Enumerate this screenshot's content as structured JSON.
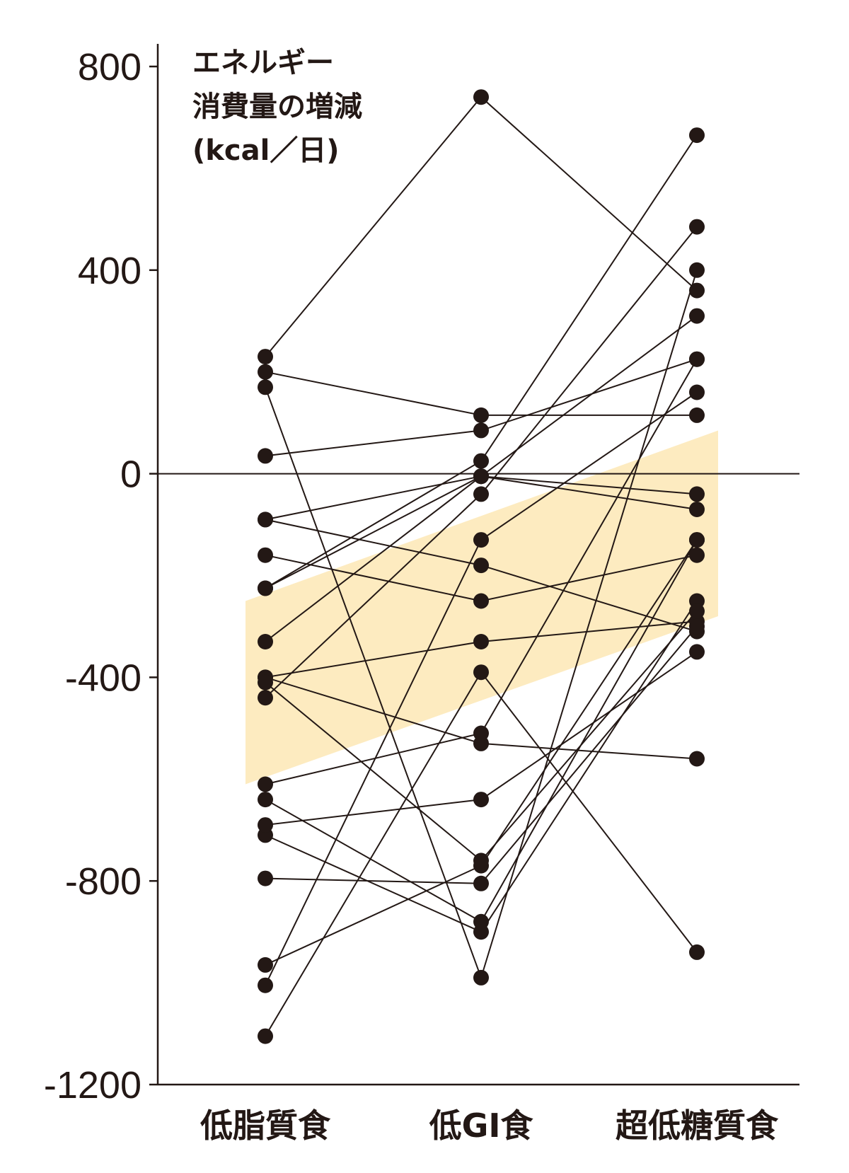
{
  "chart_data": {
    "type": "line",
    "title": "",
    "ylabel_lines": [
      "エネルギー",
      "消費量の増減",
      "(kcal／日)"
    ],
    "xlabel": "",
    "categories": [
      "低脂質食",
      "低GI食",
      "超低糖質食"
    ],
    "ylim": [
      -1200,
      850
    ],
    "yticks": [
      800,
      400,
      0,
      -400,
      -800,
      -1200
    ],
    "ytick_labels": [
      "800",
      "400",
      "0",
      "-400",
      "-800",
      "-1200"
    ],
    "zero_line": true,
    "grid": false,
    "legend": "none",
    "band": {
      "lower": [
        -610,
        -460,
        -280
      ],
      "upper": [
        -250,
        -100,
        85
      ]
    },
    "series": [
      {
        "values": [
          230,
          740,
          360
        ]
      },
      {
        "values": [
          200,
          115,
          115
        ]
      },
      {
        "values": [
          170,
          -990,
          400
        ]
      },
      {
        "values": [
          35,
          85,
          225
        ]
      },
      {
        "values": [
          -90,
          -5,
          -40
        ]
      },
      {
        "values": [
          -90,
          -180,
          -310
        ]
      },
      {
        "values": [
          -160,
          -250,
          -160
        ]
      },
      {
        "values": [
          -225,
          25,
          665
        ]
      },
      {
        "values": [
          -225,
          -5,
          310
        ]
      },
      {
        "values": [
          -330,
          -5,
          -70
        ]
      },
      {
        "values": [
          -400,
          -330,
          -290
        ]
      },
      {
        "values": [
          -400,
          -530,
          -560
        ]
      },
      {
        "values": [
          -440,
          -40,
          485
        ]
      },
      {
        "values": [
          -610,
          -510,
          225
        ]
      },
      {
        "values": [
          -640,
          -880,
          -130
        ]
      },
      {
        "values": [
          -710,
          -900,
          -250
        ]
      },
      {
        "values": [
          -795,
          -805,
          -300
        ]
      },
      {
        "values": [
          -965,
          -770,
          -130
        ]
      },
      {
        "values": [
          -1005,
          -130,
          160
        ]
      },
      {
        "values": [
          -1105,
          -390,
          -940
        ]
      },
      {
        "values": [
          -410,
          -760,
          -270
        ]
      },
      {
        "values": [
          -690,
          -640,
          -350
        ]
      }
    ]
  },
  "colors": {
    "band": "#fdebc0",
    "line": "#231815",
    "dot": "#231815",
    "axis": "#231815",
    "background": "#ffffff"
  }
}
